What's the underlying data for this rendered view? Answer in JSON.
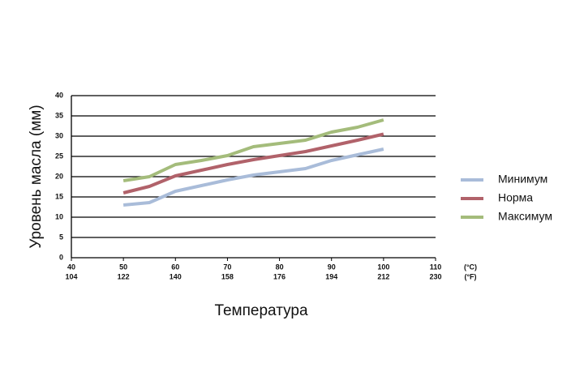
{
  "chart_data": {
    "type": "line",
    "y_label": "Уровень масла (мм)",
    "x_label": "Температура",
    "x": [
      50,
      55,
      60,
      65,
      70,
      75,
      80,
      85,
      90,
      95,
      100
    ],
    "series": [
      {
        "name": "Минимум",
        "color": "#a9bcd9",
        "values": [
          13,
          13.6,
          16.4,
          17.8,
          19.2,
          20.4,
          21.2,
          22,
          24,
          25.4,
          26.8
        ]
      },
      {
        "name": "Норма",
        "color": "#b1626a",
        "values": [
          16,
          17.6,
          20.2,
          21.6,
          23,
          24.2,
          25.2,
          26.2,
          27.6,
          29,
          30.5
        ]
      },
      {
        "name": "Максимум",
        "color": "#a4bc7b",
        "values": [
          19,
          20,
          23,
          24,
          25.2,
          27.4,
          28.2,
          29,
          31,
          32.2,
          34
        ]
      }
    ],
    "xlim": [
      40,
      110
    ],
    "xticks": [
      40,
      50,
      60,
      70,
      80,
      90,
      100,
      110
    ],
    "xticks_secondary": [
      104,
      122,
      140,
      158,
      176,
      194,
      212,
      230
    ],
    "x_units": [
      "(°C)",
      "(°F)"
    ],
    "ylim": [
      0,
      40
    ],
    "yticks": [
      0,
      5,
      10,
      15,
      20,
      25,
      30,
      35,
      40
    ],
    "grid": true,
    "legend": "right"
  }
}
